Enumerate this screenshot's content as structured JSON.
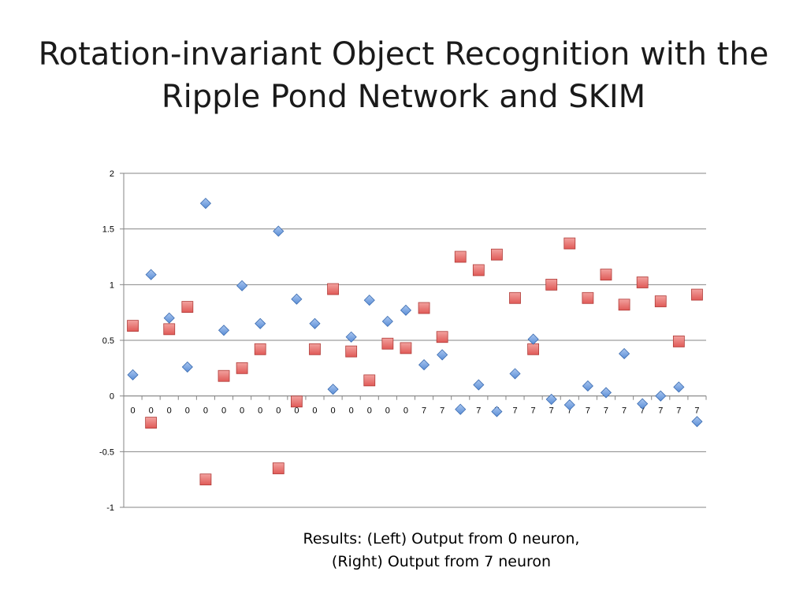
{
  "title": {
    "line1": "Rotation-invariant Object Recognition with the",
    "line2": "Ripple Pond Network and SKIM"
  },
  "caption": {
    "line1": "Results: (Left) Output from 0 neuron,",
    "line2": "(Right) Output from 7 neuron"
  },
  "colors": {
    "left_series": "#5b8ed6",
    "right_series": "#e05a57",
    "gridline": "#868686"
  },
  "chart_data": {
    "type": "scatter",
    "title": "",
    "xlabel": "",
    "ylabel": "",
    "ylim": [
      -1,
      2
    ],
    "yticks": [
      -1,
      -0.5,
      0,
      0.5,
      1,
      1.5,
      2
    ],
    "ytick_labels": [
      "-1",
      "-0.5",
      "0",
      "0.5",
      "1",
      "1.5",
      "2"
    ],
    "grid": true,
    "legend": "none",
    "categories": [
      "0",
      "0",
      "0",
      "0",
      "0",
      "0",
      "0",
      "0",
      "0",
      "0",
      "0",
      "0",
      "0",
      "0",
      "0",
      "0",
      "7",
      "7",
      "7",
      "7",
      "7",
      "7",
      "7",
      "7",
      "7",
      "7",
      "7",
      "7",
      "7",
      "7",
      "7",
      "7"
    ],
    "series": [
      {
        "marker": "diamond",
        "values": [
          0.19,
          1.09,
          0.7,
          0.26,
          1.73,
          0.59,
          0.99,
          0.65,
          1.48,
          0.87,
          0.65,
          0.06,
          0.53,
          0.86,
          0.67,
          0.77,
          0.28,
          0.37,
          -0.12,
          0.1,
          -0.14,
          0.2,
          0.51,
          -0.03,
          -0.08,
          0.09,
          0.03,
          0.38,
          -0.07,
          0.0,
          0.08,
          -0.23
        ]
      },
      {
        "marker": "square",
        "values": [
          0.63,
          -0.24,
          0.6,
          0.8,
          -0.75,
          0.18,
          0.25,
          0.42,
          -0.65,
          -0.05,
          0.42,
          0.96,
          0.4,
          0.14,
          0.47,
          0.43,
          0.79,
          0.53,
          1.25,
          1.13,
          1.27,
          0.88,
          0.42,
          1.0,
          1.37,
          0.88,
          1.09,
          0.82,
          1.02,
          0.85,
          0.49,
          0.91
        ]
      }
    ]
  }
}
